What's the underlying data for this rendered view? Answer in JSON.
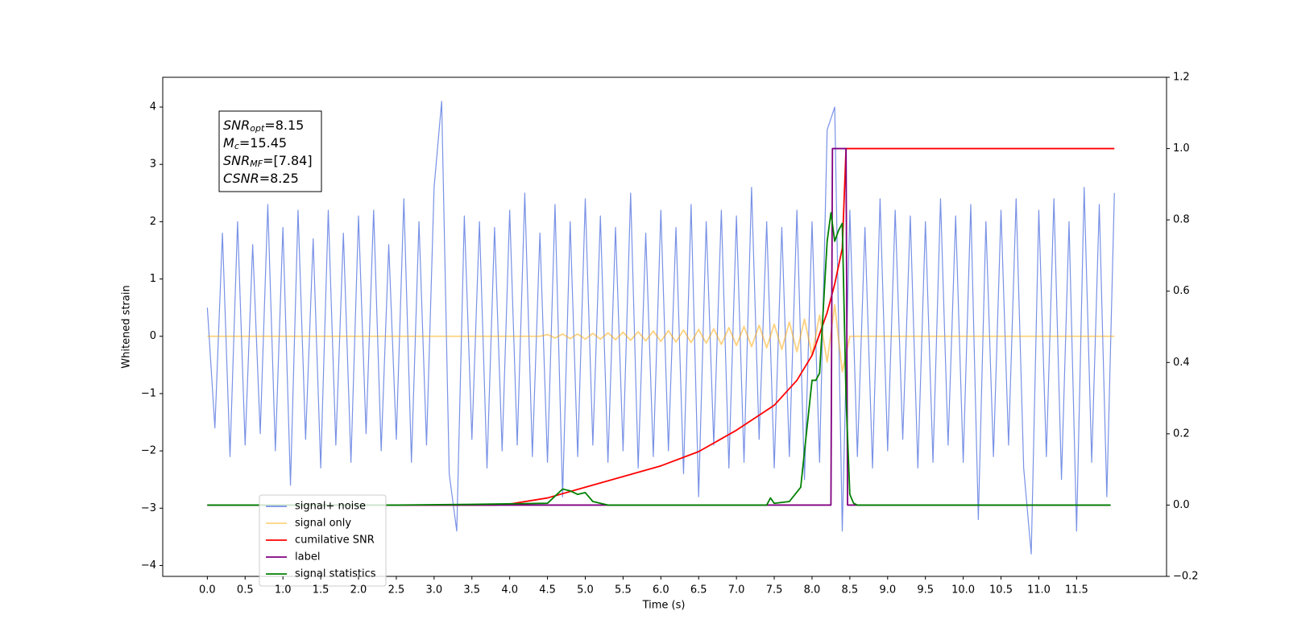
{
  "chart_data": {
    "type": "line",
    "xlabel": "Time (s)",
    "ylabel": "Whitened strain",
    "xlim": [
      -0.59,
      12.69
    ],
    "ylim": [
      -4.19,
      4.52
    ],
    "y2lim": [
      -0.2,
      1.2
    ],
    "xticks": [
      {
        "value": 0,
        "label": "0.0"
      },
      {
        "value": 0.5,
        "label": "0.5"
      },
      {
        "value": 1,
        "label": "1.0"
      },
      {
        "value": 1.5,
        "label": "1.5"
      },
      {
        "value": 2,
        "label": "2.0"
      },
      {
        "value": 2.5,
        "label": "2.5"
      },
      {
        "value": 3,
        "label": "3.0"
      },
      {
        "value": 3.5,
        "label": "3.5"
      },
      {
        "value": 4,
        "label": "4.0"
      },
      {
        "value": 4.5,
        "label": "4.5"
      },
      {
        "value": 5,
        "label": "5.0"
      },
      {
        "value": 5.5,
        "label": "5.5"
      },
      {
        "value": 6,
        "label": "6.0"
      },
      {
        "value": 6.5,
        "label": "6.5"
      },
      {
        "value": 7,
        "label": "7.0"
      },
      {
        "value": 7.5,
        "label": "7.5"
      },
      {
        "value": 8,
        "label": "8.0"
      },
      {
        "value": 8.5,
        "label": "8.5"
      },
      {
        "value": 9,
        "label": "9.0"
      },
      {
        "value": 9.5,
        "label": "9.5"
      },
      {
        "value": 10,
        "label": "10.0"
      },
      {
        "value": 10.5,
        "label": "10.5"
      },
      {
        "value": 11,
        "label": "11.0"
      },
      {
        "value": 11.5,
        "label": "11.5"
      }
    ],
    "yticks": [
      {
        "value": -4,
        "label": "−4"
      },
      {
        "value": -3,
        "label": "−3"
      },
      {
        "value": -2,
        "label": "−2"
      },
      {
        "value": -1,
        "label": "−1"
      },
      0,
      1,
      2,
      3,
      4
    ],
    "y2ticks": [
      {
        "value": -0.2,
        "label": "−0.2"
      },
      {
        "value": 0,
        "label": "0.0"
      },
      0.2,
      0.4,
      0.6,
      0.8,
      {
        "value": 1,
        "label": "1.0"
      },
      1.2
    ],
    "annotation": [
      {
        "text": "SNR",
        "sub": "opt",
        "value": "=8.15"
      },
      {
        "text": "M",
        "sub": "c",
        "value": "=15.45"
      },
      {
        "text": "SNR",
        "sub": "MF",
        "value": "=[7.84]"
      },
      {
        "text": "CSNR",
        "value": "=8.25"
      }
    ],
    "x": [
      0.0,
      0.1,
      0.2,
      0.3,
      0.4,
      0.5,
      0.6,
      0.7,
      0.8,
      0.9,
      1.0,
      1.1,
      1.2,
      1.3,
      1.4,
      1.5,
      1.6,
      1.7,
      1.8,
      1.9,
      2.0,
      2.1,
      2.2,
      2.3,
      2.4,
      2.5,
      2.6,
      2.7,
      2.8,
      2.9,
      3.0,
      3.1,
      3.2,
      3.3,
      3.4,
      3.5,
      3.6,
      3.7,
      3.8,
      3.9,
      4.0,
      4.1,
      4.2,
      4.3,
      4.4,
      4.5,
      4.6,
      4.7,
      4.8,
      4.9,
      5.0,
      5.1,
      5.2,
      5.3,
      5.4,
      5.5,
      5.6,
      5.7,
      5.8,
      5.9,
      6.0,
      6.1,
      6.2,
      6.3,
      6.4,
      6.5,
      6.6,
      6.7,
      6.8,
      6.9,
      7.0,
      7.1,
      7.2,
      7.3,
      7.4,
      7.5,
      7.6,
      7.7,
      7.8,
      7.9,
      8.0,
      8.1,
      8.2,
      8.3,
      8.4,
      8.5,
      8.6,
      8.7,
      8.8,
      8.9,
      9.0,
      9.1,
      9.2,
      9.3,
      9.4,
      9.5,
      9.6,
      9.7,
      9.8,
      9.9,
      10.0,
      10.1,
      10.2,
      10.3,
      10.4,
      10.5,
      10.6,
      10.7,
      10.8,
      10.9,
      11.0,
      11.1,
      11.2,
      11.3,
      11.4,
      11.5,
      11.6,
      11.7,
      11.8,
      11.9,
      12.0
    ],
    "series": [
      {
        "name": "signal+ noise",
        "color": "#7891e6",
        "values": [
          0.5,
          -1.6,
          1.8,
          -2.1,
          2.0,
          -1.9,
          1.6,
          -1.7,
          2.3,
          -2.0,
          1.9,
          -2.6,
          2.2,
          -1.8,
          1.7,
          -2.3,
          2.2,
          -1.9,
          1.8,
          -2.2,
          2.1,
          -1.7,
          2.2,
          -2.0,
          1.6,
          -1.8,
          2.4,
          -2.2,
          2.0,
          -1.9,
          2.6,
          4.1,
          -2.4,
          -3.4,
          2.1,
          -1.8,
          2.0,
          -2.3,
          1.9,
          -2.0,
          2.2,
          -1.9,
          2.5,
          -2.1,
          1.8,
          -2.2,
          2.3,
          -2.8,
          2.0,
          -2.1,
          2.4,
          -1.9,
          2.1,
          -2.2,
          1.9,
          -2.0,
          2.5,
          -2.3,
          1.8,
          -2.1,
          2.2,
          -2.0,
          1.9,
          -2.4,
          2.3,
          -2.8,
          2.0,
          -1.9,
          2.2,
          -2.3,
          2.1,
          -2.2,
          2.6,
          -1.8,
          2.0,
          -2.3,
          1.9,
          -2.1,
          2.2,
          -2.5,
          2.0,
          -2.2,
          3.6,
          4.0,
          -3.4,
          2.2,
          -2.1,
          1.9,
          -2.3,
          2.4,
          -2.0,
          2.2,
          -1.8,
          2.1,
          -2.3,
          2.0,
          -2.2,
          2.4,
          -1.9,
          2.1,
          -2.2,
          2.3,
          -3.2,
          2.0,
          -2.1,
          2.2,
          -1.9,
          2.4,
          -2.3,
          -3.8,
          2.2,
          -2.1,
          2.4,
          -2.5,
          2.0,
          -3.4,
          2.6,
          -2.2,
          2.3,
          -2.8,
          2.5
        ]
      },
      {
        "name": "signal only",
        "color": "#ffa500",
        "values": [
          0,
          0,
          0,
          0,
          0,
          0,
          0,
          0,
          0,
          0,
          0,
          0,
          0,
          0,
          0,
          0,
          0,
          0,
          0,
          0,
          0,
          0,
          0,
          0,
          0,
          0,
          0,
          0,
          0,
          0,
          0,
          0,
          0,
          0,
          0,
          0,
          0,
          0,
          0,
          0,
          0,
          0,
          0,
          0,
          0,
          0.03,
          -0.03,
          0.04,
          -0.04,
          0.04,
          -0.05,
          0.05,
          -0.05,
          0.06,
          -0.06,
          0.07,
          -0.07,
          0.08,
          -0.08,
          0.09,
          -0.09,
          0.1,
          -0.1,
          0.11,
          -0.11,
          0.12,
          -0.12,
          0.13,
          -0.14,
          0.15,
          -0.16,
          0.17,
          -0.18,
          0.19,
          -0.2,
          0.21,
          -0.23,
          0.25,
          -0.27,
          0.3,
          -0.33,
          0.37,
          -0.45,
          0.55,
          -0.62,
          0,
          0,
          0,
          0,
          0,
          0,
          0,
          0,
          0,
          0,
          0,
          0,
          0,
          0,
          0,
          0,
          0,
          0,
          0,
          0,
          0,
          0,
          0,
          0,
          0,
          0,
          0,
          0,
          0,
          0,
          0,
          0,
          0,
          0,
          0,
          0
        ]
      },
      {
        "name": "cumilative SNR",
        "color": "#ff0000",
        "axis": "y2",
        "x": [
          0.0,
          3.8,
          4.0,
          4.5,
          5.0,
          5.5,
          6.0,
          6.5,
          7.0,
          7.5,
          7.8,
          8.0,
          8.1,
          8.2,
          8.3,
          8.4,
          8.45,
          12.0
        ],
        "values": [
          0,
          0,
          0.003,
          0.02,
          0.05,
          0.08,
          0.11,
          0.15,
          0.21,
          0.28,
          0.35,
          0.42,
          0.48,
          0.54,
          0.62,
          0.72,
          1.0,
          1.0
        ]
      },
      {
        "name": "label",
        "color": "#800080",
        "axis": "y2",
        "x": [
          0.0,
          8.25,
          8.27,
          8.45,
          8.47,
          11.95
        ],
        "values": [
          0,
          0,
          1,
          1,
          0,
          0
        ]
      },
      {
        "name": "signal statistics",
        "color": "#008000",
        "axis": "y2",
        "x": [
          0.0,
          2.5,
          3.5,
          4.5,
          4.7,
          4.8,
          4.9,
          5.0,
          5.1,
          5.3,
          7.4,
          7.45,
          7.5,
          7.7,
          7.85,
          8.0,
          8.05,
          8.1,
          8.2,
          8.25,
          8.3,
          8.35,
          8.4,
          8.45,
          8.5,
          8.55,
          8.6,
          11.95
        ],
        "values": [
          0,
          0,
          0.002,
          0.005,
          0.045,
          0.04,
          0.03,
          0.035,
          0.01,
          0,
          0,
          0.02,
          0.005,
          0.01,
          0.05,
          0.35,
          0.35,
          0.37,
          0.74,
          0.82,
          0.74,
          0.77,
          0.79,
          0.3,
          0.03,
          0.005,
          0,
          0
        ]
      }
    ]
  }
}
